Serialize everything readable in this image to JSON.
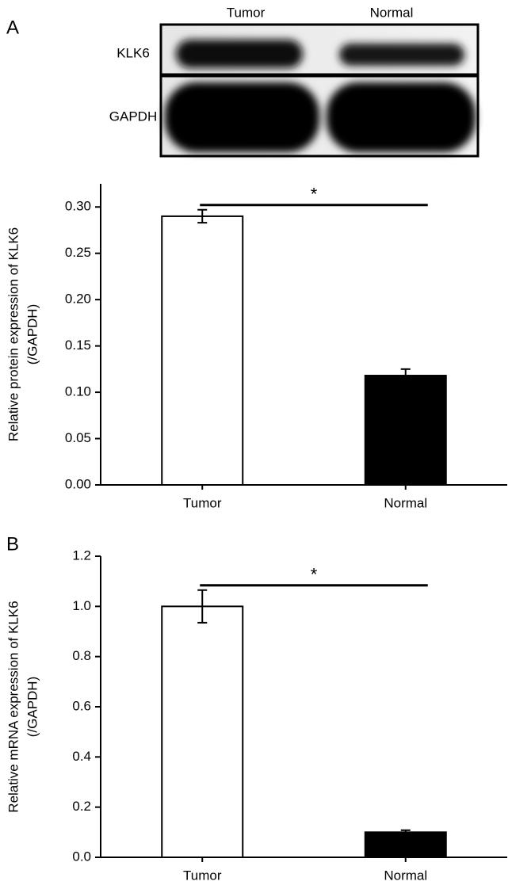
{
  "figure": {
    "panel_labels": [
      "A",
      "B"
    ],
    "blot": {
      "lanes": [
        "Tumor",
        "Normal"
      ],
      "rows": [
        "KLK6",
        "GAPDH"
      ]
    }
  },
  "chart_data": [
    {
      "type": "bar",
      "y_label": [
        "Relative protein expression of KLK6",
        "(/GAPDH)"
      ],
      "categories": [
        "Tumor",
        "Normal"
      ],
      "values": [
        0.29,
        0.118
      ],
      "errors": [
        0.007,
        0.007
      ],
      "colors": [
        "#ffffff",
        "#000000"
      ],
      "annotation": "*",
      "ylim": [
        0,
        0.325
      ],
      "yticks": [
        {
          "value": 0,
          "label": "0.00"
        },
        {
          "value": 0.05,
          "label": "0.05"
        },
        {
          "value": 0.1,
          "label": "0.10"
        },
        {
          "value": 0.15,
          "label": "0.15"
        },
        {
          "value": 0.2,
          "label": "0.20"
        },
        {
          "value": 0.25,
          "label": "0.25"
        },
        {
          "value": 0.3,
          "label": "0.30"
        }
      ]
    },
    {
      "type": "bar",
      "y_label": [
        "Relative mRNA expression of KLK6",
        "(/GAPDH)"
      ],
      "categories": [
        "Tumor",
        "Normal"
      ],
      "values": [
        1.0,
        0.1
      ],
      "errors": [
        0.065,
        0.008
      ],
      "colors": [
        "#ffffff",
        "#000000"
      ],
      "annotation": "*",
      "ylim": [
        0,
        1.2
      ],
      "yticks": [
        {
          "value": 0,
          "label": "0.0"
        },
        {
          "value": 0.2,
          "label": "0.2"
        },
        {
          "value": 0.4,
          "label": "0.4"
        },
        {
          "value": 0.6,
          "label": "0.6"
        },
        {
          "value": 0.8,
          "label": "0.8"
        },
        {
          "value": 1.0,
          "label": "1.0"
        },
        {
          "value": 1.2,
          "label": "1.2"
        }
      ]
    }
  ]
}
